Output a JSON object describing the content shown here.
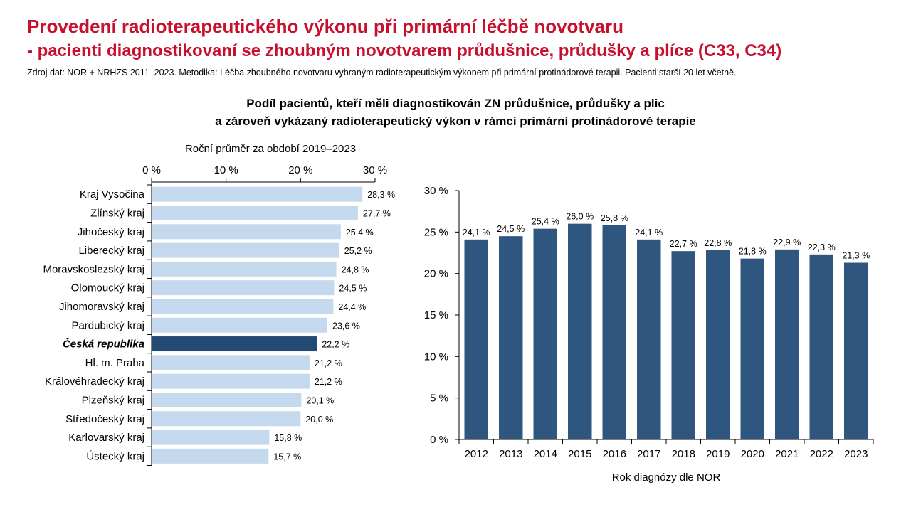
{
  "header": {
    "title": "Provedení radioterapeutického výkonu při primární léčbě novotvaru",
    "subtitle": "- pacienti diagnostikovaní se zhoubným novotvarem průdušnice, průdušky a plíce (C33, C34)",
    "source": "Zdroj dat: NOR + NRHZS 2011–2023. Metodika: Léčba zhoubného novotvaru vybraným radioterapeutickým výkonem při primární protinádorové terapii. Pacienti starší 20 let včetně."
  },
  "chart_heading": {
    "line1": "Podíl pacientů, kteří měli diagnostikován ZN průdušnice, průdušky a plic",
    "line2": "a zároveň vykázaný radioterapeutický výkon v rámci primární protinádorové terapie"
  },
  "colors": {
    "title": "#c8102e",
    "light_bar": "#c5d9ee",
    "highlight_bar": "#234a74",
    "dark_bar": "#2e567f"
  },
  "chart_data": [
    {
      "type": "bar",
      "orientation": "horizontal",
      "title": "Roční průměr za období 2019–2023",
      "xlim": [
        0,
        30
      ],
      "x_ticks": [
        "0 %",
        "10 %",
        "20 %",
        "30 %"
      ],
      "x_tick_values": [
        0,
        10,
        20,
        30
      ],
      "highlight": "Česká republika",
      "categories": [
        "Kraj Vysočina",
        "Zlínský kraj",
        "Jihočeský kraj",
        "Liberecký kraj",
        "Moravskoslezský kraj",
        "Olomoucký kraj",
        "Jihomoravský kraj",
        "Pardubický kraj",
        "Česká republika",
        "Hl. m. Praha",
        "Královéhradecký kraj",
        "Plzeňský kraj",
        "Středočeský kraj",
        "Karlovarský kraj",
        "Ústecký kraj"
      ],
      "values": [
        28.3,
        27.7,
        25.4,
        25.2,
        24.8,
        24.5,
        24.4,
        23.6,
        22.2,
        21.2,
        21.2,
        20.1,
        20.0,
        15.8,
        15.7
      ],
      "value_labels": [
        "28,3 %",
        "27,7 %",
        "25,4 %",
        "25,2 %",
        "24,8 %",
        "24,5 %",
        "24,4 %",
        "23,6 %",
        "22,2 %",
        "21,2 %",
        "21,2 %",
        "20,1 %",
        "20,0 %",
        "15,8 %",
        "15,7 %"
      ],
      "grid": false
    },
    {
      "type": "bar",
      "orientation": "vertical",
      "xlabel": "Rok diagnózy dle NOR",
      "ylim": [
        0,
        30
      ],
      "y_ticks": [
        "0 %",
        "5 %",
        "10 %",
        "15 %",
        "20 %",
        "25 %",
        "30 %"
      ],
      "y_tick_values": [
        0,
        5,
        10,
        15,
        20,
        25,
        30
      ],
      "categories": [
        "2012",
        "2013",
        "2014",
        "2015",
        "2016",
        "2017",
        "2018",
        "2019",
        "2020",
        "2021",
        "2022",
        "2023"
      ],
      "values": [
        24.1,
        24.5,
        25.4,
        26.0,
        25.8,
        24.1,
        22.7,
        22.8,
        21.8,
        22.9,
        22.3,
        21.3
      ],
      "value_labels": [
        "24,1 %",
        "24,5 %",
        "25,4 %",
        "26,0 %",
        "25,8 %",
        "24,1 %",
        "22,7 %",
        "22,8 %",
        "21,8 %",
        "22,9 %",
        "22,3 %",
        "21,3 %"
      ],
      "grid": false
    }
  ]
}
